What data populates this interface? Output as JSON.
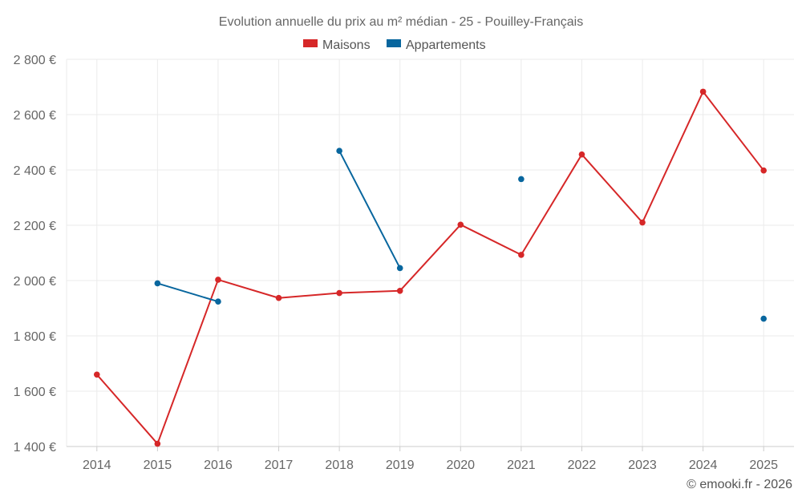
{
  "chart_data": {
    "type": "line",
    "title": "Evolution annuelle du prix au m² médian - 25 - Pouilley-Français",
    "categories": [
      "2014",
      "2015",
      "2016",
      "2017",
      "2018",
      "2019",
      "2020",
      "2021",
      "2022",
      "2023",
      "2024",
      "2025"
    ],
    "ylim": [
      1400,
      2800
    ],
    "yticks": [
      1400,
      1600,
      1800,
      2000,
      2200,
      2400,
      2600,
      2800
    ],
    "ytick_labels": [
      "1 400 €",
      "1 600 €",
      "1 800 €",
      "2 000 €",
      "2 200 €",
      "2 400 €",
      "2 600 €",
      "2 800 €"
    ],
    "grid": true,
    "legend_position": "top-center",
    "series": [
      {
        "name": "Maisons",
        "color": "#d62728",
        "values": [
          1660,
          1410,
          2003,
          1937,
          1955,
          1963,
          2202,
          2093,
          2456,
          2210,
          2683,
          2398
        ]
      },
      {
        "name": "Appartements",
        "color": "#08669e",
        "values": [
          null,
          1990,
          1924,
          null,
          2469,
          2045,
          null,
          2367,
          null,
          null,
          null,
          1862
        ]
      }
    ],
    "credit": "© emooki.fr - 2026"
  }
}
